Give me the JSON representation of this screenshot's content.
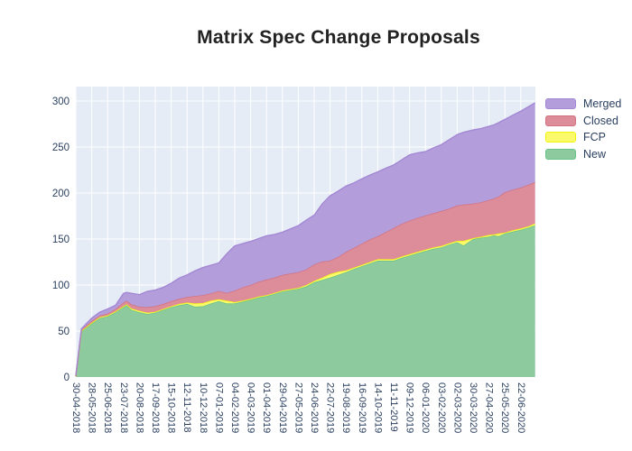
{
  "chart_data": {
    "type": "area",
    "stacked": true,
    "title": "Matrix Spec Change Proposals",
    "xlabel": "",
    "ylabel": "",
    "grid": true,
    "plot_background": "#e5ecf6",
    "grid_color": "#ffffff",
    "axis_text_color": "#2a3f5f",
    "legend_position": "right-top-outside",
    "y_axis": {
      "ticks": [
        0,
        50,
        100,
        150,
        200,
        250,
        300
      ],
      "range": [
        0,
        316
      ]
    },
    "x_axis": {
      "tick_angle": 90,
      "tick_labels": [
        "30-04-2018",
        "28-05-2018",
        "25-06-2018",
        "23-07-2018",
        "20-08-2018",
        "17-09-2018",
        "15-10-2018",
        "12-11-2018",
        "10-12-2018",
        "07-01-2019",
        "04-02-2019",
        "04-03-2019",
        "01-04-2019",
        "29-04-2019",
        "27-05-2019",
        "24-06-2019",
        "22-07-2019",
        "19-08-2019",
        "16-09-2019",
        "14-10-2019",
        "11-11-2019",
        "09-12-2019",
        "06-01-2020",
        "03-02-2020",
        "02-03-2020",
        "30-03-2020",
        "27-04-2020",
        "25-05-2020",
        "22-06-2020"
      ]
    },
    "legend": [
      {
        "label": "Merged"
      },
      {
        "label": "Closed"
      },
      {
        "label": "FCP"
      },
      {
        "label": "New"
      }
    ],
    "sample_t": [
      0,
      0.35,
      0.6,
      1,
      1.5,
      2,
      2.5,
      3,
      3.2,
      3.5,
      4,
      4.5,
      5,
      5.5,
      6,
      6.5,
      7,
      7.5,
      8,
      8.5,
      9,
      9.5,
      10,
      10.5,
      11,
      11.5,
      12,
      12.5,
      13,
      13.5,
      14,
      14.5,
      15,
      15.5,
      16,
      16.5,
      17,
      17.5,
      18,
      18.5,
      19,
      19.5,
      20,
      20.5,
      21,
      21.5,
      22,
      22.5,
      23,
      23.5,
      24,
      24.4,
      25,
      25.5,
      26,
      26.3,
      26.6,
      27,
      27.5,
      28,
      28.5,
      28.9
    ],
    "series": [
      {
        "name": "New",
        "fill": "#8dcb9e",
        "line": "#67c287",
        "values": [
          1,
          50,
          53,
          58,
          64,
          66,
          70.5,
          76,
          78,
          73,
          70.5,
          68.5,
          70,
          73,
          76,
          78,
          79.5,
          76.5,
          77,
          80,
          82.5,
          80,
          80,
          82,
          84,
          86.5,
          88,
          90.5,
          93,
          94.5,
          96,
          98.5,
          103,
          105.5,
          108,
          111,
          114,
          117.5,
          120.5,
          123.5,
          126.5,
          126.5,
          126.5,
          129.5,
          132,
          134.5,
          137,
          139.5,
          141,
          144,
          146.5,
          143,
          150,
          151.5,
          152.5,
          154,
          153,
          156,
          158,
          160,
          162.5,
          165
        ]
      },
      {
        "name": "FCP",
        "fill": "#fafa6b",
        "line": "#f2f20d",
        "values": [
          0,
          0.5,
          0.5,
          1,
          1,
          1,
          1,
          1,
          1,
          1.5,
          1.5,
          1.5,
          1,
          1,
          1,
          1.5,
          1.5,
          3.5,
          3.5,
          3,
          2,
          3,
          1.5,
          1,
          1,
          1,
          1,
          1,
          1,
          1,
          1,
          1.5,
          1.5,
          2.5,
          4,
          3.5,
          2,
          1.5,
          1.5,
          1.5,
          1.5,
          1.5,
          1.5,
          1.5,
          1.5,
          1.5,
          1.5,
          1.5,
          1.5,
          1.5,
          1.5,
          5,
          1,
          1,
          2,
          1,
          3,
          1,
          1.5,
          1.5,
          1.5,
          2
        ]
      },
      {
        "name": "Closed",
        "fill": "#dc8d99",
        "line": "#d4717f",
        "values": [
          0,
          1,
          1.5,
          2,
          2,
          2,
          2.5,
          4,
          4,
          4.5,
          4.5,
          6,
          6,
          5.5,
          5.5,
          5.5,
          6,
          8,
          8.5,
          8,
          9,
          8.5,
          12.5,
          14.5,
          15,
          16,
          17,
          16.5,
          17,
          17,
          17,
          17,
          18,
          17.5,
          14.5,
          16,
          20,
          21.5,
          23,
          24.5,
          25,
          29.5,
          34,
          35.5,
          36.5,
          37,
          37,
          37,
          38,
          37.5,
          38.5,
          39.5,
          37.5,
          37.5,
          38,
          39,
          40,
          44,
          44,
          44.5,
          45,
          45
        ]
      },
      {
        "name": "Merged",
        "fill": "#b39ddb",
        "line": "#a488d4",
        "values": [
          1,
          1,
          2,
          3,
          3.5,
          5,
          4,
          10,
          9,
          12,
          13,
          17,
          17.5,
          18,
          19.5,
          22.5,
          24,
          27.5,
          30,
          30.5,
          30.5,
          42.5,
          48.5,
          47.5,
          47.5,
          47,
          47.5,
          47,
          46.5,
          48.5,
          50.5,
          53.5,
          53.5,
          62.5,
          70.5,
          71.5,
          71.5,
          70.5,
          70.5,
          70,
          70,
          69.5,
          68.5,
          69.5,
          71.5,
          70.5,
          69.5,
          71,
          72,
          75,
          77,
          78.5,
          80,
          80,
          80,
          80,
          80.5,
          79,
          81,
          83,
          85,
          86
        ]
      }
    ]
  }
}
